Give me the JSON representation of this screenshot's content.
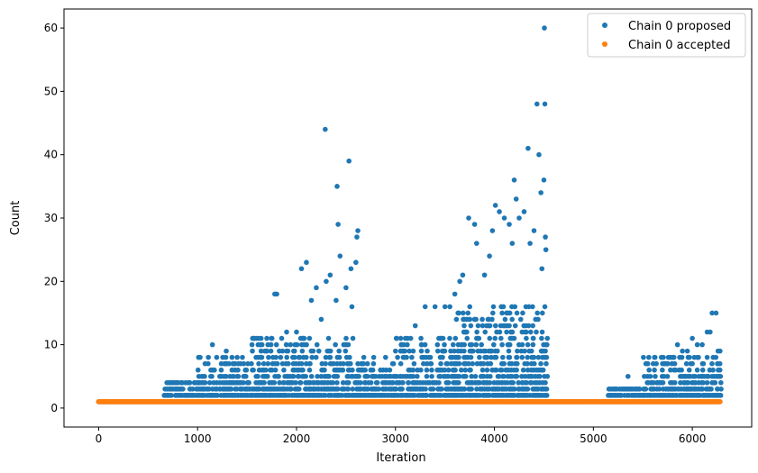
{
  "chart_data": {
    "type": "scatter",
    "title": "",
    "xlabel": "Iteration",
    "ylabel": "Count",
    "xlim": [
      -350,
      6600
    ],
    "ylim": [
      -3,
      63
    ],
    "xticks": [
      0,
      1000,
      2000,
      3000,
      4000,
      5000,
      6000
    ],
    "yticks": [
      0,
      10,
      20,
      30,
      40,
      50,
      60
    ],
    "grid": false,
    "legend_position": "top-right",
    "colors": {
      "proposed": "#1f77b4",
      "accepted": "#ff7f0e"
    },
    "series": [
      {
        "name": "Chain 0 proposed",
        "color": "#1f77b4",
        "description": "dense band of points at count 1-9 for iterations ~650-4530 and ~5150-6280; labeled outliers below",
        "band_segments": [
          {
            "x_start": 0,
            "x_end": 660,
            "max_count": 1
          },
          {
            "x_start": 660,
            "x_end": 1000,
            "max_count": 4
          },
          {
            "x_start": 1000,
            "x_end": 1500,
            "max_count": 8
          },
          {
            "x_start": 1500,
            "x_end": 2600,
            "max_count": 11
          },
          {
            "x_start": 2600,
            "x_end": 3000,
            "max_count": 7
          },
          {
            "x_start": 3000,
            "x_end": 3600,
            "max_count": 11
          },
          {
            "x_start": 3600,
            "x_end": 4530,
            "max_count": 16
          },
          {
            "x_start": 4530,
            "x_end": 5150,
            "max_count": 1
          },
          {
            "x_start": 5150,
            "x_end": 5500,
            "max_count": 3
          },
          {
            "x_start": 5500,
            "x_end": 6280,
            "max_count": 8
          }
        ],
        "outliers": [
          [
            720,
            3
          ],
          [
            840,
            4
          ],
          [
            920,
            4
          ],
          [
            1000,
            4
          ],
          [
            1050,
            5
          ],
          [
            1150,
            10
          ],
          [
            1290,
            9
          ],
          [
            1400,
            8
          ],
          [
            1550,
            10
          ],
          [
            1620,
            11
          ],
          [
            1700,
            9
          ],
          [
            1780,
            18
          ],
          [
            1800,
            18
          ],
          [
            1850,
            11
          ],
          [
            1900,
            12
          ],
          [
            2000,
            12
          ],
          [
            2050,
            22
          ],
          [
            2100,
            23
          ],
          [
            2150,
            17
          ],
          [
            2200,
            19
          ],
          [
            2250,
            14
          ],
          [
            2290,
            44
          ],
          [
            2300,
            20
          ],
          [
            2340,
            21
          ],
          [
            2400,
            17
          ],
          [
            2410,
            35
          ],
          [
            2420,
            29
          ],
          [
            2440,
            24
          ],
          [
            2500,
            19
          ],
          [
            2530,
            39
          ],
          [
            2550,
            22
          ],
          [
            2560,
            16
          ],
          [
            2600,
            23
          ],
          [
            2610,
            27
          ],
          [
            2620,
            28
          ],
          [
            2680,
            8
          ],
          [
            2780,
            8
          ],
          [
            2900,
            8
          ],
          [
            3000,
            9
          ],
          [
            3100,
            11
          ],
          [
            3200,
            13
          ],
          [
            3300,
            16
          ],
          [
            3400,
            16
          ],
          [
            3500,
            16
          ],
          [
            3550,
            16
          ],
          [
            3600,
            18
          ],
          [
            3650,
            20
          ],
          [
            3680,
            21
          ],
          [
            3740,
            30
          ],
          [
            3800,
            29
          ],
          [
            3820,
            26
          ],
          [
            3900,
            21
          ],
          [
            3950,
            24
          ],
          [
            3980,
            28
          ],
          [
            4010,
            32
          ],
          [
            4050,
            31
          ],
          [
            4100,
            30
          ],
          [
            4150,
            29
          ],
          [
            4180,
            26
          ],
          [
            4200,
            36
          ],
          [
            4220,
            33
          ],
          [
            4250,
            30
          ],
          [
            4300,
            31
          ],
          [
            4340,
            41
          ],
          [
            4360,
            26
          ],
          [
            4400,
            28
          ],
          [
            4430,
            48
          ],
          [
            4450,
            40
          ],
          [
            4470,
            34
          ],
          [
            4480,
            22
          ],
          [
            4500,
            36
          ],
          [
            4505,
            60
          ],
          [
            4510,
            48
          ],
          [
            4515,
            27
          ],
          [
            4520,
            25
          ],
          [
            5350,
            5
          ],
          [
            5550,
            7
          ],
          [
            5720,
            7
          ],
          [
            5800,
            8
          ],
          [
            5850,
            10
          ],
          [
            5900,
            9
          ],
          [
            5950,
            9
          ],
          [
            6000,
            11
          ],
          [
            6050,
            10
          ],
          [
            6100,
            10
          ],
          [
            6150,
            12
          ],
          [
            6180,
            12
          ],
          [
            6200,
            15
          ],
          [
            6240,
            15
          ],
          [
            6260,
            9
          ],
          [
            6280,
            9
          ]
        ]
      },
      {
        "name": "Chain 0 accepted",
        "color": "#ff7f0e",
        "description": "constant value 1 at every iteration from 0 to ~6280",
        "x_range": [
          0,
          6280
        ],
        "value": 1
      }
    ]
  }
}
